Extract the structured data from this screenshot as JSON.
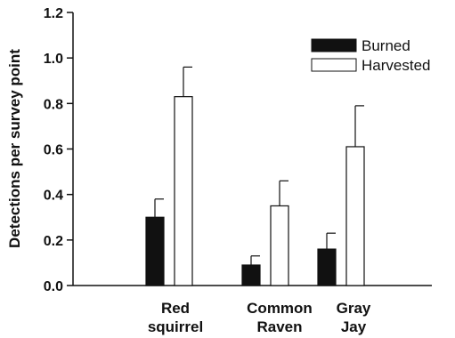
{
  "chart_data": {
    "type": "bar",
    "title": "",
    "xlabel": "",
    "ylabel": "Detections per survey point",
    "ylim": [
      0,
      1.2
    ],
    "yticks": [
      "0.0",
      "0.2",
      "0.4",
      "0.6",
      "0.8",
      "1.0",
      "1.2"
    ],
    "categories": [
      {
        "line1": "Red",
        "line2": "squirrel"
      },
      {
        "line1": "Common",
        "line2": "Raven"
      },
      {
        "line1": "Gray",
        "line2": "Jay"
      }
    ],
    "series": [
      {
        "name": "Burned",
        "color": "#111111",
        "values": [
          0.3,
          0.09,
          0.16
        ],
        "errors": [
          0.08,
          0.04,
          0.07
        ]
      },
      {
        "name": "Harvested",
        "color": "#ffffff",
        "values": [
          0.83,
          0.35,
          0.61
        ],
        "errors": [
          0.13,
          0.11,
          0.18
        ]
      }
    ],
    "legend_position": "top-right",
    "grid": false
  }
}
